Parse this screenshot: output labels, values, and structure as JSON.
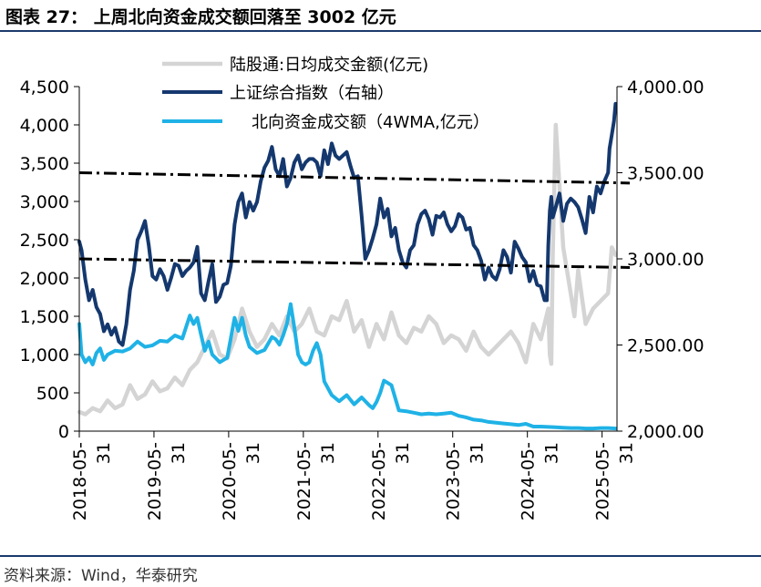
{
  "figure_label": "图表 27：",
  "figure_title": "上周北向资金成交额回落至 3002 亿元",
  "source": "资料来源：Wind，华泰研究",
  "colors": {
    "turnover": "#d4d4d4",
    "index": "#14386e",
    "turnover_4wma": "#1fb2e6",
    "guide": "#000000"
  },
  "chart_data": {
    "type": "line",
    "title": "上周北向资金成交额回落至 3002 亿元",
    "x_range": [
      2018.42,
      2025.62
    ],
    "x_ticks": [
      {
        "x": 2018.42,
        "line1": "2018-05-",
        "line2": "31"
      },
      {
        "x": 2019.42,
        "line1": "2019-05-",
        "line2": "31"
      },
      {
        "x": 2020.42,
        "line1": "2020-05-",
        "line2": "31"
      },
      {
        "x": 2021.42,
        "line1": "2021-05-",
        "line2": "31"
      },
      {
        "x": 2022.42,
        "line1": "2022-05-",
        "line2": "31"
      },
      {
        "x": 2023.42,
        "line1": "2023-05-",
        "line2": "31"
      },
      {
        "x": 2024.42,
        "line1": "2024-05-",
        "line2": "31"
      },
      {
        "x": 2025.42,
        "line1": "2025-05-",
        "line2": "31"
      }
    ],
    "y_left": {
      "range": [
        0,
        4500
      ],
      "ticks": [
        0,
        500,
        1000,
        1500,
        2000,
        2500,
        3000,
        3500,
        4000,
        4500
      ],
      "tick_labels": [
        "0",
        "500",
        "1,000",
        "1,500",
        "2,000",
        "2,500",
        "3,000",
        "3,500",
        "4,000",
        "4,500"
      ]
    },
    "y_right": {
      "range": [
        2000,
        4000
      ],
      "ticks": [
        2000,
        2500,
        3000,
        3500,
        4000
      ],
      "tick_labels": [
        "2,000.00",
        "2,500.00",
        "3,000.00",
        "3,500.00",
        "4,000.00"
      ]
    },
    "legend": [
      {
        "key": "turnover",
        "label": "陆股通:日均成交金额(亿元)"
      },
      {
        "key": "index",
        "label": "上证综合指数（右轴）"
      },
      {
        "key": "turnover_4wma",
        "label": "北向资金成交额（4WMA,亿元）"
      }
    ],
    "series": [
      {
        "key": "turnover",
        "name": "陆股通:日均成交金额(亿元)",
        "axis": "left",
        "x": [
          2018.42,
          2018.5,
          2018.6,
          2018.7,
          2018.8,
          2018.9,
          2019.0,
          2019.1,
          2019.2,
          2019.3,
          2019.4,
          2019.5,
          2019.6,
          2019.7,
          2019.8,
          2019.9,
          2020.0,
          2020.1,
          2020.2,
          2020.3,
          2020.4,
          2020.5,
          2020.6,
          2020.7,
          2020.8,
          2020.9,
          2021.0,
          2021.1,
          2021.2,
          2021.3,
          2021.4,
          2021.5,
          2021.6,
          2021.7,
          2021.8,
          2021.9,
          2022.0,
          2022.1,
          2022.2,
          2022.3,
          2022.4,
          2022.5,
          2022.6,
          2022.7,
          2022.8,
          2022.9,
          2023.0,
          2023.1,
          2023.2,
          2023.3,
          2023.4,
          2023.5,
          2023.6,
          2023.7,
          2023.8,
          2023.9,
          2024.0,
          2024.1,
          2024.2,
          2024.3,
          2024.4,
          2024.5,
          2024.6,
          2024.7,
          2024.72,
          2024.74,
          2024.76,
          2024.8,
          2024.85,
          2024.9,
          2025.0,
          2025.05,
          2025.1,
          2025.2,
          2025.3,
          2025.4,
          2025.5,
          2025.55,
          2025.6
        ],
        "values": [
          250,
          220,
          300,
          260,
          400,
          300,
          350,
          600,
          420,
          480,
          650,
          520,
          560,
          700,
          600,
          800,
          900,
          1100,
          1300,
          1000,
          950,
          1200,
          1600,
          1300,
          1100,
          1200,
          1400,
          1250,
          1500,
          1300,
          1400,
          1600,
          1300,
          1250,
          1500,
          1450,
          1700,
          1300,
          1450,
          1100,
          1400,
          1200,
          1550,
          1250,
          1150,
          1350,
          1300,
          1500,
          1400,
          1150,
          1250,
          1200,
          1050,
          1300,
          1100,
          1000,
          1100,
          1200,
          1300,
          1150,
          900,
          1400,
          1200,
          1600,
          1000,
          880,
          2300,
          4000,
          3200,
          2400,
          1800,
          1500,
          2100,
          1400,
          1600,
          1700,
          1800,
          2400,
          2300
        ]
      },
      {
        "key": "index",
        "name": "上证综合指数（右轴）",
        "axis": "right",
        "x": [
          2018.42,
          2018.45,
          2018.5,
          2018.55,
          2018.6,
          2018.65,
          2018.7,
          2018.75,
          2018.8,
          2018.85,
          2018.9,
          2018.95,
          2019.0,
          2019.05,
          2019.1,
          2019.15,
          2019.2,
          2019.25,
          2019.3,
          2019.35,
          2019.4,
          2019.45,
          2019.5,
          2019.55,
          2019.6,
          2019.65,
          2019.7,
          2019.75,
          2019.8,
          2019.85,
          2019.9,
          2019.95,
          2020.0,
          2020.05,
          2020.1,
          2020.15,
          2020.2,
          2020.25,
          2020.3,
          2020.35,
          2020.4,
          2020.45,
          2020.5,
          2020.55,
          2020.6,
          2020.65,
          2020.7,
          2020.75,
          2020.8,
          2020.85,
          2020.9,
          2020.95,
          2021.0,
          2021.05,
          2021.1,
          2021.15,
          2021.2,
          2021.25,
          2021.3,
          2021.35,
          2021.4,
          2021.45,
          2021.5,
          2021.55,
          2021.6,
          2021.65,
          2021.7,
          2021.75,
          2021.8,
          2021.85,
          2021.9,
          2021.95,
          2022.0,
          2022.05,
          2022.1,
          2022.15,
          2022.2,
          2022.25,
          2022.3,
          2022.35,
          2022.4,
          2022.45,
          2022.5,
          2022.55,
          2022.6,
          2022.65,
          2022.7,
          2022.75,
          2022.8,
          2022.85,
          2022.9,
          2022.95,
          2023.0,
          2023.05,
          2023.1,
          2023.15,
          2023.2,
          2023.25,
          2023.3,
          2023.35,
          2023.4,
          2023.45,
          2023.5,
          2023.55,
          2023.6,
          2023.65,
          2023.7,
          2023.75,
          2023.8,
          2023.85,
          2023.9,
          2023.95,
          2024.0,
          2024.05,
          2024.1,
          2024.15,
          2024.2,
          2024.25,
          2024.3,
          2024.35,
          2024.4,
          2024.45,
          2024.5,
          2024.55,
          2024.6,
          2024.65,
          2024.68,
          2024.7,
          2024.72,
          2024.74,
          2024.76,
          2024.8,
          2024.85,
          2024.9,
          2024.95,
          2025.0,
          2025.05,
          2025.1,
          2025.15,
          2025.2,
          2025.25,
          2025.3,
          2025.35,
          2025.4,
          2025.45,
          2025.5,
          2025.52,
          2025.55,
          2025.58,
          2025.6
        ],
        "values": [
          3100,
          3050,
          2880,
          2760,
          2820,
          2720,
          2680,
          2580,
          2620,
          2560,
          2600,
          2520,
          2500,
          2620,
          2820,
          2930,
          3110,
          3160,
          3220,
          3080,
          2900,
          2880,
          2940,
          2900,
          2820,
          2890,
          2970,
          2960,
          2900,
          2930,
          2950,
          2980,
          3070,
          2800,
          2760,
          2870,
          2970,
          2750,
          2780,
          2850,
          2860,
          2960,
          3200,
          3330,
          3380,
          3240,
          3330,
          3280,
          3330,
          3450,
          3530,
          3570,
          3650,
          3520,
          3480,
          3580,
          3420,
          3470,
          3560,
          3600,
          3520,
          3560,
          3580,
          3580,
          3560,
          3480,
          3630,
          3550,
          3670,
          3600,
          3580,
          3600,
          3620,
          3540,
          3470,
          3480,
          3250,
          3000,
          3050,
          3120,
          3200,
          3350,
          3240,
          3290,
          3130,
          3180,
          3050,
          2980,
          2950,
          3050,
          3080,
          3200,
          3260,
          3280,
          3230,
          3140,
          3250,
          3240,
          3270,
          3200,
          3160,
          3190,
          3260,
          3240,
          3170,
          3180,
          3080,
          3050,
          2990,
          2880,
          2950,
          2900,
          2880,
          2940,
          3050,
          3010,
          2920,
          3100,
          3060,
          3010,
          2980,
          2870,
          2930,
          2850,
          2840,
          2760,
          2760,
          3080,
          3280,
          3360,
          3240,
          3300,
          3380,
          3220,
          3320,
          3350,
          3330,
          3300,
          3230,
          3150,
          3360,
          3270,
          3420,
          3380,
          3450,
          3500,
          3640,
          3720,
          3800,
          3900
        ]
      },
      {
        "key": "turnover_4wma",
        "name": "北向资金成交额（4WMA,亿元）",
        "axis": "left",
        "x": [
          2018.42,
          2018.45,
          2018.5,
          2018.55,
          2018.6,
          2018.65,
          2018.7,
          2018.75,
          2018.8,
          2018.9,
          2019.0,
          2019.1,
          2019.2,
          2019.3,
          2019.4,
          2019.5,
          2019.6,
          2019.7,
          2019.8,
          2019.85,
          2019.9,
          2019.95,
          2020.0,
          2020.05,
          2020.1,
          2020.15,
          2020.2,
          2020.3,
          2020.4,
          2020.5,
          2020.55,
          2020.6,
          2020.65,
          2020.7,
          2020.8,
          2020.9,
          2021.0,
          2021.05,
          2021.1,
          2021.15,
          2021.2,
          2021.25,
          2021.3,
          2021.35,
          2021.4,
          2021.45,
          2021.5,
          2021.55,
          2021.6,
          2021.65,
          2021.7,
          2021.8,
          2021.9,
          2022.0,
          2022.1,
          2022.2,
          2022.3,
          2022.35,
          2022.4,
          2022.45,
          2022.5,
          2022.6,
          2022.7,
          2022.8,
          2022.9,
          2023.0,
          2023.1,
          2023.2,
          2023.3,
          2023.4,
          2023.5,
          2023.6,
          2023.7,
          2023.8,
          2023.9,
          2024.0,
          2024.1,
          2024.2,
          2024.3,
          2024.4,
          2024.5,
          2024.6,
          2024.7,
          2024.8,
          2024.9,
          2025.0,
          2025.1,
          2025.2,
          2025.3,
          2025.4,
          2025.5,
          2025.6
        ],
        "values": [
          1400,
          1000,
          900,
          960,
          870,
          1020,
          1080,
          930,
          1000,
          1050,
          1040,
          1080,
          1170,
          1100,
          1120,
          1180,
          1170,
          1250,
          1210,
          1360,
          1510,
          1400,
          1480,
          1260,
          1050,
          1170,
          1000,
          900,
          960,
          1480,
          1310,
          1480,
          1250,
          1100,
          1020,
          1060,
          1230,
          1200,
          1130,
          1250,
          1400,
          1660,
          1350,
          1000,
          900,
          870,
          900,
          1050,
          1150,
          1000,
          650,
          470,
          390,
          470,
          350,
          440,
          340,
          300,
          380,
          500,
          660,
          600,
          270,
          260,
          240,
          220,
          230,
          220,
          230,
          240,
          200,
          180,
          150,
          140,
          120,
          110,
          100,
          90,
          80,
          95,
          60,
          60,
          55,
          50,
          45,
          40,
          40,
          35,
          35,
          40,
          40,
          35
        ]
      }
    ],
    "guides": [
      {
        "axis": "right",
        "x": [
          2018.42,
          2025.62
        ],
        "y": [
          3500,
          3440
        ]
      },
      {
        "axis": "right",
        "x": [
          2018.42,
          2025.62
        ],
        "y": [
          3000,
          2950
        ]
      }
    ]
  }
}
